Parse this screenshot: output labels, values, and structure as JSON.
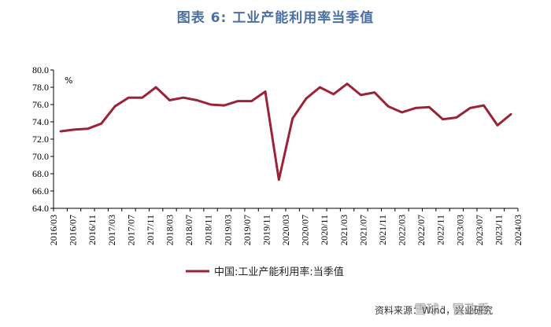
{
  "title": "图表 6:  工业产能利用率当季值",
  "source": "资料来源：Wind，兴业研究",
  "watermark": "雪球：冒政委",
  "chart_data": {
    "type": "line",
    "title": "图表 6:  工业产能利用率当季值",
    "ylabel": "%",
    "xlabel": "",
    "ylim": [
      64,
      80
    ],
    "yticks": [
      "64.0",
      "66.0",
      "68.0",
      "70.0",
      "72.0",
      "74.0",
      "76.0",
      "78.0",
      "80.0"
    ],
    "categories": [
      "2016/03",
      "2016/06",
      "2016/09",
      "2016/12",
      "2017/03",
      "2017/06",
      "2017/09",
      "2017/12",
      "2018/03",
      "2018/06",
      "2018/09",
      "2018/12",
      "2019/03",
      "2019/06",
      "2019/09",
      "2019/12",
      "2020/03",
      "2020/06",
      "2020/09",
      "2020/12",
      "2021/03",
      "2021/06",
      "2021/09",
      "2021/12",
      "2022/03",
      "2022/06",
      "2022/09",
      "2022/12",
      "2023/03",
      "2023/06",
      "2023/09",
      "2023/12",
      "2024/03",
      "2024/06"
    ],
    "xtick_labels": [
      "2016/03",
      "2016/07",
      "2016/11",
      "2017/03",
      "2017/07",
      "2017/11",
      "2018/03",
      "2018/07",
      "2018/11",
      "2019/03",
      "2019/07",
      "2019/11",
      "2020/03",
      "2020/07",
      "2020/11",
      "2021/03",
      "2021/07",
      "2021/11",
      "2022/03",
      "2022/07",
      "2022/11",
      "2023/03",
      "2023/07",
      "2023/11",
      "2024/03"
    ],
    "series": [
      {
        "name": "中国:工业产能利用率:当季值",
        "color": "#9b2335",
        "values": [
          72.9,
          73.1,
          73.2,
          73.8,
          75.8,
          76.8,
          76.8,
          78.0,
          76.5,
          76.8,
          76.5,
          76.0,
          75.9,
          76.4,
          76.4,
          77.5,
          67.3,
          74.4,
          76.7,
          78.0,
          77.2,
          78.4,
          77.1,
          77.4,
          75.8,
          75.1,
          75.6,
          75.7,
          74.3,
          74.5,
          75.6,
          75.9,
          73.6,
          74.9
        ]
      }
    ],
    "legend_position": "bottom",
    "grid": false
  }
}
